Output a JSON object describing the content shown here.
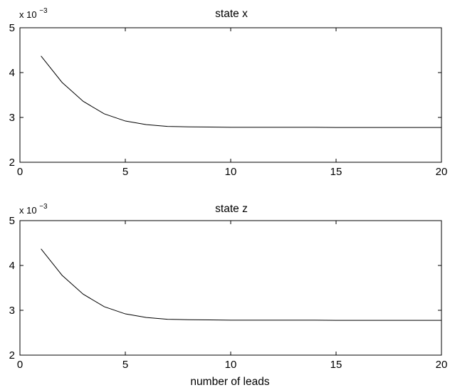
{
  "chart_data": [
    {
      "type": "line",
      "title": "state x",
      "xlabel": "",
      "ylabel": "",
      "y_multiplier": {
        "base": "x 10",
        "exponent": "−3"
      },
      "xlim": [
        0,
        20
      ],
      "ylim": [
        2,
        5
      ],
      "xticks": [
        "0",
        "5",
        "10",
        "15",
        "20"
      ],
      "yticks": [
        "2",
        "3",
        "4",
        "5"
      ],
      "grid": false,
      "series": [
        {
          "x": [
            1,
            2,
            3,
            4,
            5,
            6,
            7,
            8,
            9,
            10,
            11,
            12,
            13,
            14,
            15,
            16,
            17,
            18,
            19,
            20
          ],
          "values": [
            4.37,
            3.78,
            3.36,
            3.08,
            2.92,
            2.84,
            2.8,
            2.79,
            2.785,
            2.78,
            2.78,
            2.78,
            2.78,
            2.78,
            2.775,
            2.775,
            2.775,
            2.775,
            2.775,
            2.775
          ],
          "color": "#000000"
        }
      ]
    },
    {
      "type": "line",
      "title": "state z",
      "xlabel": "number of leads",
      "ylabel": "",
      "y_multiplier": {
        "base": "x 10",
        "exponent": "−3"
      },
      "xlim": [
        0,
        20
      ],
      "ylim": [
        2,
        5
      ],
      "xticks": [
        "0",
        "5",
        "10",
        "15",
        "20"
      ],
      "yticks": [
        "2",
        "3",
        "4",
        "5"
      ],
      "grid": false,
      "series": [
        {
          "x": [
            1,
            2,
            3,
            4,
            5,
            6,
            7,
            8,
            9,
            10,
            11,
            12,
            13,
            14,
            15,
            16,
            17,
            18,
            19,
            20
          ],
          "values": [
            4.37,
            3.78,
            3.36,
            3.08,
            2.92,
            2.84,
            2.8,
            2.79,
            2.785,
            2.78,
            2.78,
            2.78,
            2.78,
            2.78,
            2.775,
            2.775,
            2.775,
            2.775,
            2.775,
            2.775
          ],
          "color": "#000000"
        }
      ]
    }
  ]
}
